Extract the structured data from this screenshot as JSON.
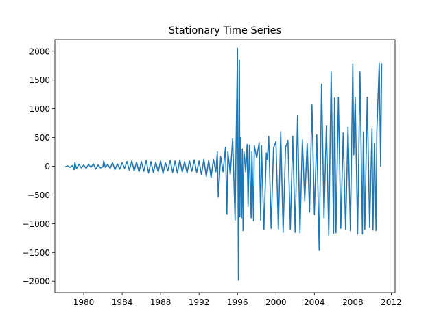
{
  "chart_data": {
    "type": "line",
    "title": "Stationary Time Series",
    "xlabel": "",
    "ylabel": "",
    "xlim": [
      1977.0,
      2012.4
    ],
    "ylim": [
      -2200,
      2200
    ],
    "x_ticks": [
      1980,
      1984,
      1988,
      1992,
      1996,
      2000,
      2004,
      2008,
      2012
    ],
    "y_ticks": [
      -2000,
      -1500,
      -1000,
      -500,
      0,
      500,
      1000,
      1500,
      2000
    ],
    "grid": false,
    "legend": "none",
    "series": [
      {
        "color": "#1f77b4",
        "x": [
          1978.08,
          1978.33,
          1978.58,
          1978.83,
          1979.0,
          1979.08,
          1979.25,
          1979.5,
          1979.75,
          1980.0,
          1980.25,
          1980.5,
          1980.75,
          1981.0,
          1981.25,
          1981.5,
          1981.75,
          1982.0,
          1982.08,
          1982.25,
          1982.5,
          1982.75,
          1983.0,
          1983.25,
          1983.5,
          1983.75,
          1984.0,
          1984.25,
          1984.5,
          1984.75,
          1985.0,
          1985.25,
          1985.5,
          1985.75,
          1986.0,
          1986.25,
          1986.5,
          1986.75,
          1987.0,
          1987.25,
          1987.5,
          1987.75,
          1988.0,
          1988.25,
          1988.5,
          1988.75,
          1989.0,
          1989.25,
          1989.5,
          1989.75,
          1990.0,
          1990.25,
          1990.5,
          1990.75,
          1991.0,
          1991.25,
          1991.5,
          1991.75,
          1992.0,
          1992.25,
          1992.5,
          1992.75,
          1993.0,
          1993.25,
          1993.5,
          1993.75,
          1993.9,
          1994.0,
          1994.25,
          1994.5,
          1994.75,
          1994.9,
          1995.0,
          1995.25,
          1995.5,
          1995.75,
          1995.85,
          1996.0,
          1996.1,
          1996.2,
          1996.25,
          1996.33,
          1996.42,
          1996.5,
          1996.58,
          1996.67,
          1996.75,
          1996.85,
          1997.0,
          1997.1,
          1997.25,
          1997.42,
          1997.5,
          1997.67,
          1997.75,
          1998.0,
          1998.25,
          1998.42,
          1998.5,
          1998.75,
          1999.0,
          1999.1,
          1999.25,
          1999.5,
          1999.75,
          2000.0,
          2000.25,
          2000.5,
          2000.75,
          2001.0,
          2001.25,
          2001.5,
          2001.75,
          2002.0,
          2002.25,
          2002.5,
          2002.75,
          2003.0,
          2003.25,
          2003.5,
          2003.75,
          2004.0,
          2004.25,
          2004.5,
          2004.75,
          2005.0,
          2005.25,
          2005.5,
          2005.75,
          2006.0,
          2006.1,
          2006.25,
          2006.5,
          2006.75,
          2007.0,
          2007.25,
          2007.5,
          2007.75,
          2008.0,
          2008.1,
          2008.25,
          2008.5,
          2008.75,
          2009.0,
          2009.1,
          2009.25,
          2009.5,
          2009.75,
          2010.0,
          2010.1,
          2010.25,
          2010.42,
          2010.5,
          2010.75,
          2010.9,
          2011.0
        ],
        "y": [
          -10,
          5,
          -20,
          10,
          -60,
          60,
          -40,
          30,
          -30,
          20,
          -40,
          30,
          -20,
          40,
          -50,
          20,
          -30,
          -10,
          90,
          -20,
          30,
          -40,
          60,
          -60,
          40,
          -50,
          60,
          -40,
          80,
          -70,
          90,
          -80,
          70,
          -100,
          80,
          -90,
          100,
          -120,
          80,
          -110,
          70,
          -100,
          90,
          -130,
          60,
          -80,
          100,
          -110,
          90,
          -120,
          110,
          -100,
          80,
          -120,
          90,
          -90,
          110,
          -110,
          90,
          -150,
          120,
          -180,
          100,
          -200,
          120,
          -100,
          250,
          -540,
          170,
          -100,
          330,
          -830,
          250,
          -140,
          480,
          -940,
          300,
          2050,
          -1980,
          1850,
          -880,
          500,
          -900,
          300,
          -1120,
          250,
          140,
          -100,
          380,
          -700,
          370,
          -900,
          250,
          -950,
          360,
          150,
          410,
          -940,
          360,
          -1100,
          230,
          120,
          520,
          -1080,
          320,
          430,
          -1090,
          600,
          -1150,
          330,
          450,
          -1100,
          520,
          -1150,
          880,
          -1160,
          460,
          -600,
          400,
          -800,
          1070,
          -840,
          550,
          -1460,
          1430,
          -900,
          700,
          -1200,
          1640,
          -1170,
          1190,
          -1160,
          1200,
          -1080,
          580,
          -1100,
          680,
          -1120,
          1780,
          200,
          1200,
          -1180,
          1640,
          -1180,
          600,
          -1100,
          1200,
          -1060,
          650,
          -1110,
          400,
          -1120,
          600,
          1790,
          0,
          1790
        ]
      }
    ]
  }
}
